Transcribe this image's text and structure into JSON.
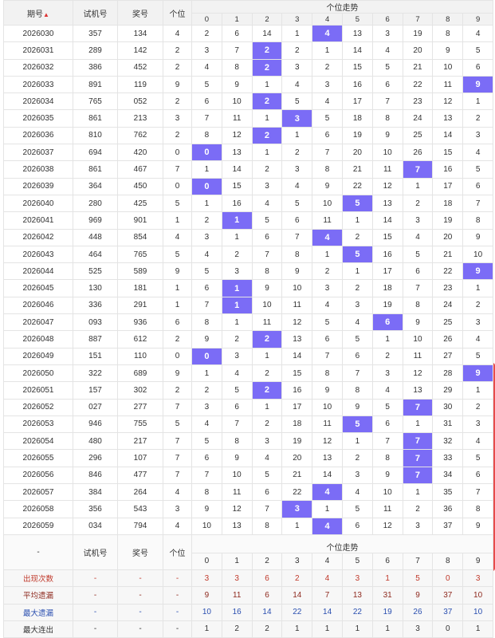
{
  "header": {
    "period_label": "期号",
    "sort_icon": "sort-arrows-icon",
    "test_label": "试机号",
    "prize_label": "奖号",
    "unit_label": "个位",
    "trend_label": "个位走势",
    "digits": [
      "0",
      "1",
      "2",
      "3",
      "4",
      "5",
      "6",
      "7",
      "8",
      "9"
    ]
  },
  "rows": [
    {
      "period": "2026030",
      "test": "357",
      "prize": "134",
      "unit": 4,
      "cells": [
        2,
        6,
        14,
        1,
        "4",
        13,
        3,
        19,
        8,
        4
      ]
    },
    {
      "period": "2026031",
      "test": "289",
      "prize": "142",
      "unit": 2,
      "cells": [
        3,
        7,
        "2",
        2,
        1,
        14,
        4,
        20,
        9,
        5
      ]
    },
    {
      "period": "2026032",
      "test": "386",
      "prize": "452",
      "unit": 2,
      "cells": [
        4,
        8,
        "2",
        3,
        2,
        15,
        5,
        21,
        10,
        6
      ]
    },
    {
      "period": "2026033",
      "test": "891",
      "prize": "119",
      "unit": 9,
      "cells": [
        5,
        9,
        1,
        4,
        3,
        16,
        6,
        22,
        11,
        "9"
      ]
    },
    {
      "period": "2026034",
      "test": "765",
      "prize": "052",
      "unit": 2,
      "cells": [
        6,
        10,
        "2",
        5,
        4,
        17,
        7,
        23,
        12,
        1
      ]
    },
    {
      "period": "2026035",
      "test": "861",
      "prize": "213",
      "unit": 3,
      "cells": [
        7,
        11,
        1,
        "3",
        5,
        18,
        8,
        24,
        13,
        2
      ]
    },
    {
      "period": "2026036",
      "test": "810",
      "prize": "762",
      "unit": 2,
      "cells": [
        8,
        12,
        "2",
        1,
        6,
        19,
        9,
        25,
        14,
        3
      ]
    },
    {
      "period": "2026037",
      "test": "694",
      "prize": "420",
      "unit": 0,
      "cells": [
        "0",
        13,
        1,
        2,
        7,
        20,
        10,
        26,
        15,
        4
      ]
    },
    {
      "period": "2026038",
      "test": "861",
      "prize": "467",
      "unit": 7,
      "cells": [
        1,
        14,
        2,
        3,
        8,
        21,
        11,
        "7",
        16,
        5
      ]
    },
    {
      "period": "2026039",
      "test": "364",
      "prize": "450",
      "unit": 0,
      "cells": [
        "0",
        15,
        3,
        4,
        9,
        22,
        12,
        1,
        17,
        6
      ]
    },
    {
      "period": "2026040",
      "test": "280",
      "prize": "425",
      "unit": 5,
      "cells": [
        1,
        16,
        4,
        5,
        10,
        "5",
        13,
        2,
        18,
        7
      ]
    },
    {
      "period": "2026041",
      "test": "969",
      "prize": "901",
      "unit": 1,
      "cells": [
        2,
        "1",
        5,
        6,
        11,
        1,
        14,
        3,
        19,
        8
      ]
    },
    {
      "period": "2026042",
      "test": "448",
      "prize": "854",
      "unit": 4,
      "cells": [
        3,
        1,
        6,
        7,
        "4",
        2,
        15,
        4,
        20,
        9
      ]
    },
    {
      "period": "2026043",
      "test": "464",
      "prize": "765",
      "unit": 5,
      "cells": [
        4,
        2,
        7,
        8,
        1,
        "5",
        16,
        5,
        21,
        10
      ]
    },
    {
      "period": "2026044",
      "test": "525",
      "prize": "589",
      "unit": 9,
      "cells": [
        5,
        3,
        8,
        9,
        2,
        1,
        17,
        6,
        22,
        "9"
      ]
    },
    {
      "period": "2026045",
      "test": "130",
      "prize": "181",
      "unit": 1,
      "cells": [
        6,
        "1",
        9,
        10,
        3,
        2,
        18,
        7,
        23,
        1
      ]
    },
    {
      "period": "2026046",
      "test": "336",
      "prize": "291",
      "unit": 1,
      "cells": [
        7,
        "1",
        10,
        11,
        4,
        3,
        19,
        8,
        24,
        2
      ]
    },
    {
      "period": "2026047",
      "test": "093",
      "prize": "936",
      "unit": 6,
      "cells": [
        8,
        1,
        11,
        12,
        5,
        4,
        "6",
        9,
        25,
        3
      ]
    },
    {
      "period": "2026048",
      "test": "887",
      "prize": "612",
      "unit": 2,
      "cells": [
        9,
        2,
        "2",
        13,
        6,
        5,
        1,
        10,
        26,
        4
      ]
    },
    {
      "period": "2026049",
      "test": "151",
      "prize": "110",
      "unit": 0,
      "cells": [
        "0",
        3,
        1,
        14,
        7,
        6,
        2,
        11,
        27,
        5
      ]
    },
    {
      "period": "2026050",
      "test": "322",
      "prize": "689",
      "unit": 9,
      "cells": [
        1,
        4,
        2,
        15,
        8,
        7,
        3,
        12,
        28,
        "9"
      ]
    },
    {
      "period": "2026051",
      "test": "157",
      "prize": "302",
      "unit": 2,
      "cells": [
        2,
        5,
        "2",
        16,
        9,
        8,
        4,
        13,
        29,
        1
      ]
    },
    {
      "period": "2026052",
      "test": "027",
      "prize": "277",
      "unit": 7,
      "cells": [
        3,
        6,
        1,
        17,
        10,
        9,
        5,
        "7",
        30,
        2
      ]
    },
    {
      "period": "2026053",
      "test": "946",
      "prize": "755",
      "unit": 5,
      "cells": [
        4,
        7,
        2,
        18,
        11,
        "5",
        6,
        1,
        31,
        3
      ]
    },
    {
      "period": "2026054",
      "test": "480",
      "prize": "217",
      "unit": 7,
      "cells": [
        5,
        8,
        3,
        19,
        12,
        1,
        7,
        "7",
        32,
        4
      ]
    },
    {
      "period": "2026055",
      "test": "296",
      "prize": "107",
      "unit": 7,
      "cells": [
        6,
        9,
        4,
        20,
        13,
        2,
        8,
        "7",
        33,
        5
      ]
    },
    {
      "period": "2026056",
      "test": "846",
      "prize": "477",
      "unit": 7,
      "cells": [
        7,
        10,
        5,
        21,
        14,
        3,
        9,
        "7",
        34,
        6
      ]
    },
    {
      "period": "2026057",
      "test": "384",
      "prize": "264",
      "unit": 4,
      "cells": [
        8,
        11,
        6,
        22,
        "4",
        4,
        10,
        1,
        35,
        7
      ]
    },
    {
      "period": "2026058",
      "test": "356",
      "prize": "543",
      "unit": 3,
      "cells": [
        9,
        12,
        7,
        "3",
        1,
        5,
        11,
        2,
        36,
        8
      ]
    },
    {
      "period": "2026059",
      "test": "034",
      "prize": "794",
      "unit": 4,
      "cells": [
        10,
        13,
        8,
        1,
        "4",
        6,
        12,
        3,
        37,
        9
      ]
    }
  ],
  "footer": {
    "dash": "-",
    "test_label": "试机号",
    "prize_label": "奖号",
    "unit_label": "个位",
    "trend_label": "个位走势",
    "digits": [
      "0",
      "1",
      "2",
      "3",
      "4",
      "5",
      "6",
      "7",
      "8",
      "9"
    ]
  },
  "stats": [
    {
      "label": "出现次数",
      "values": [
        "3",
        "3",
        "6",
        "2",
        "4",
        "3",
        "1",
        "5",
        "0",
        "3"
      ]
    },
    {
      "label": "平均遗漏",
      "values": [
        "9",
        "11",
        "6",
        "14",
        "7",
        "13",
        "31",
        "9",
        "37",
        "10"
      ]
    },
    {
      "label": "最大遗漏",
      "values": [
        "10",
        "16",
        "14",
        "22",
        "14",
        "22",
        "19",
        "26",
        "37",
        "10"
      ]
    },
    {
      "label": "最大连出",
      "values": [
        "1",
        "2",
        "2",
        "1",
        "1",
        "1",
        "1",
        "3",
        "0",
        "1"
      ]
    }
  ],
  "colors": {
    "hit": "#7b6cf6",
    "line": "#7b6cf6",
    "highlight_box": "#e74c4c"
  }
}
